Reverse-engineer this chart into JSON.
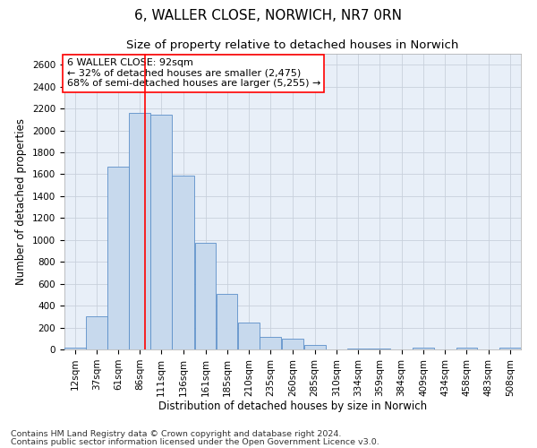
{
  "title": "6, WALLER CLOSE, NORWICH, NR7 0RN",
  "subtitle": "Size of property relative to detached houses in Norwich",
  "xlabel": "Distribution of detached houses by size in Norwich",
  "ylabel": "Number of detached properties",
  "footnote1": "Contains HM Land Registry data © Crown copyright and database right 2024.",
  "footnote2": "Contains public sector information licensed under the Open Government Licence v3.0.",
  "annotation_line1": "6 WALLER CLOSE: 92sqm",
  "annotation_line2": "← 32% of detached houses are smaller (2,475)",
  "annotation_line3": "68% of semi-detached houses are larger (5,255) →",
  "bar_color": "#c7d9ed",
  "bar_edge_color": "#5b8fc9",
  "redline_x": 92,
  "categories": [
    "12sqm",
    "37sqm",
    "61sqm",
    "86sqm",
    "111sqm",
    "136sqm",
    "161sqm",
    "185sqm",
    "210sqm",
    "235sqm",
    "260sqm",
    "285sqm",
    "310sqm",
    "334sqm",
    "359sqm",
    "384sqm",
    "409sqm",
    "434sqm",
    "458sqm",
    "483sqm",
    "508sqm"
  ],
  "bin_edges": [
    0,
    24.5,
    49,
    73.5,
    98,
    122.5,
    148.5,
    173,
    197.5,
    222.5,
    247.5,
    272.5,
    297.5,
    322,
    346.5,
    371.5,
    396.5,
    421.5,
    446,
    470.5,
    495.5,
    520
  ],
  "values": [
    20,
    300,
    1670,
    2160,
    2140,
    1590,
    970,
    510,
    245,
    115,
    95,
    40,
    0,
    10,
    5,
    0,
    20,
    0,
    20,
    0,
    20
  ],
  "ylim": [
    0,
    2700
  ],
  "yticks": [
    0,
    200,
    400,
    600,
    800,
    1000,
    1200,
    1400,
    1600,
    1800,
    2000,
    2200,
    2400,
    2600
  ],
  "background_color": "#ffffff",
  "plot_bg_color": "#e8eff8",
  "grid_color": "#c8d0dc",
  "title_fontsize": 11,
  "subtitle_fontsize": 9.5,
  "axis_label_fontsize": 8.5,
  "tick_fontsize": 7.5,
  "annotation_fontsize": 8,
  "footnote_fontsize": 6.8
}
